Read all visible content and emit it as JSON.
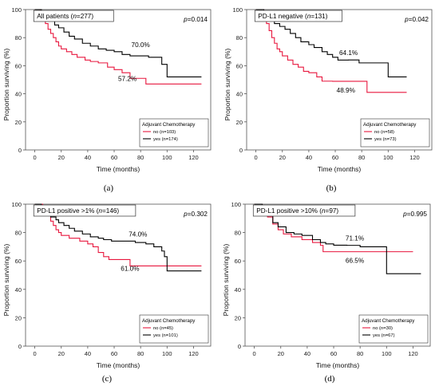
{
  "colors": {
    "no": "#e8173e",
    "yes": "#000000",
    "axis": "#555555"
  },
  "chart_data": [
    {
      "type": "line",
      "title": "All patients (n=277)",
      "title_parts": [
        "All patients (",
        "n",
        "=277)"
      ],
      "pvalue": "p=0.014",
      "panel_label": "(a)",
      "xlabel": "Time (months)",
      "ylabel": "Proportion surviving (%)",
      "xlim": [
        -7,
        133
      ],
      "ylim": [
        0,
        100
      ],
      "xticks": [
        0,
        20,
        40,
        60,
        80,
        100,
        120
      ],
      "yticks": [
        0,
        20,
        40,
        60,
        80,
        100
      ],
      "legend_title": "Adjuvant Chemotherapy",
      "annotations": [
        {
          "text": "70.0%",
          "x": 80,
          "y": 70.0
        },
        {
          "text": "57.2%",
          "x": 70,
          "y": 57.2
        }
      ],
      "series": [
        {
          "name": "no (n=103)",
          "color_key": "no",
          "x": [
            0,
            4,
            6,
            8,
            10,
            12,
            14,
            16,
            18,
            20,
            24,
            28,
            32,
            38,
            42,
            48,
            55,
            60,
            66,
            72,
            84,
            126
          ],
          "y": [
            100,
            97,
            94,
            90,
            86,
            83,
            80,
            77,
            74,
            72,
            70,
            68,
            66,
            64,
            63,
            62,
            59,
            57.2,
            55,
            51,
            47,
            47
          ]
        },
        {
          "name": "yes (n=174)",
          "color_key": "yes",
          "x": [
            0,
            5,
            8,
            10,
            12,
            15,
            18,
            22,
            26,
            30,
            36,
            42,
            48,
            54,
            60,
            66,
            72,
            86,
            96,
            100,
            126
          ],
          "y": [
            100,
            98,
            96,
            94,
            92,
            89,
            87,
            84,
            81,
            79,
            76,
            74,
            72,
            71,
            70,
            68,
            67,
            66,
            61,
            52,
            52
          ]
        }
      ]
    },
    {
      "type": "line",
      "title": "PD-L1 negative (n=131)",
      "title_parts": [
        "PD-L1 negative (",
        "n",
        "=131)"
      ],
      "pvalue": "p=0.042",
      "panel_label": "(b)",
      "xlabel": "Time (months)",
      "ylabel": "Proportion surviving (%)",
      "xlim": [
        -7,
        133
      ],
      "ylim": [
        0,
        100
      ],
      "xticks": [
        0,
        20,
        40,
        60,
        80,
        100,
        120
      ],
      "yticks": [
        0,
        20,
        40,
        60,
        80,
        100
      ],
      "legend_title": "Adjuvant Chemotherapy",
      "annotations": [
        {
          "text": "64.1%",
          "x": 70,
          "y": 64.1
        },
        {
          "text": "48.9%",
          "x": 68,
          "y": 48.9
        }
      ],
      "series": [
        {
          "name": "no (n=58)",
          "color_key": "no",
          "x": [
            0,
            6,
            8,
            10,
            12,
            14,
            16,
            18,
            20,
            24,
            28,
            32,
            36,
            40,
            46,
            50,
            58,
            72,
            84,
            114
          ],
          "y": [
            100,
            95,
            90,
            85,
            80,
            76,
            72,
            70,
            67,
            64,
            61,
            59,
            56,
            55,
            52,
            49,
            48.9,
            48.9,
            41,
            41
          ]
        },
        {
          "name": "yes (n=73)",
          "color_key": "yes",
          "x": [
            0,
            6,
            10,
            14,
            18,
            22,
            26,
            30,
            34,
            40,
            44,
            50,
            54,
            58,
            62,
            70,
            78,
            84,
            100,
            114
          ],
          "y": [
            100,
            96,
            92,
            90,
            88,
            86,
            83,
            80,
            77,
            75,
            73,
            70,
            68,
            66,
            64,
            64.1,
            62,
            62,
            52,
            52
          ]
        }
      ]
    },
    {
      "type": "line",
      "title": "PD-L1 positive >1% (n=146)",
      "title_parts": [
        "PD-L1 positive >1% (",
        "n",
        "=146)"
      ],
      "pvalue": "p=0.302",
      "panel_label": "(c)",
      "xlabel": "Time (months)",
      "ylabel": "Proportion surviving (%)",
      "xlim": [
        -7,
        133
      ],
      "ylim": [
        0,
        100
      ],
      "xticks": [
        0,
        20,
        40,
        60,
        80,
        100,
        120
      ],
      "yticks": [
        0,
        20,
        40,
        60,
        80,
        100
      ],
      "legend_title": "Adjuvant Chemotherapy",
      "annotations": [
        {
          "text": "74.0%",
          "x": 78,
          "y": 74.0
        },
        {
          "text": "61.0%",
          "x": 72,
          "y": 61.0
        }
      ],
      "series": [
        {
          "name": "no (n=45)",
          "color_key": "no",
          "x": [
            0,
            6,
            10,
            12,
            14,
            16,
            18,
            20,
            26,
            34,
            40,
            44,
            48,
            52,
            56,
            60,
            72,
            100,
            126
          ],
          "y": [
            100,
            97,
            93,
            88,
            85,
            82,
            80,
            78,
            76,
            74,
            72,
            70,
            66,
            63,
            61,
            61,
            56.5,
            56.5,
            56.5
          ]
        },
        {
          "name": "yes (n=101)",
          "color_key": "yes",
          "x": [
            0,
            5,
            8,
            12,
            16,
            18,
            22,
            26,
            30,
            36,
            42,
            48,
            52,
            58,
            64,
            70,
            76,
            84,
            90,
            96,
            98,
            100,
            126
          ],
          "y": [
            100,
            98,
            95,
            91,
            89,
            87,
            85,
            83,
            81,
            79,
            77,
            76,
            75,
            74,
            74,
            74,
            73,
            72,
            70,
            67,
            63,
            53,
            53
          ]
        }
      ]
    },
    {
      "type": "line",
      "title": "PD-L1 positive >10% (n=97)",
      "title_parts": [
        "PD-L1 positive >10% (",
        "n",
        "=97)"
      ],
      "pvalue": "p=0.995",
      "panel_label": "(d)",
      "xlabel": "Time (months)",
      "ylabel": "Proportion surviving (%)",
      "xlim": [
        -7,
        133
      ],
      "ylim": [
        0,
        100
      ],
      "xticks": [
        0,
        20,
        40,
        60,
        80,
        100,
        120
      ],
      "yticks": [
        0,
        20,
        40,
        60,
        80,
        100
      ],
      "legend_title": "Adjuvant Chemotherapy",
      "annotations": [
        {
          "text": "71.1%",
          "x": 76,
          "y": 71.1
        },
        {
          "text": "66.5%",
          "x": 76,
          "y": 66.5
        }
      ],
      "series": [
        {
          "name": "no (n=30)",
          "color_key": "no",
          "x": [
            0,
            6,
            10,
            14,
            18,
            22,
            28,
            36,
            44,
            50,
            52,
            120
          ],
          "y": [
            100,
            96,
            91,
            86,
            82,
            79,
            77,
            75,
            73,
            71,
            66.5,
            66.5
          ]
        },
        {
          "name": "yes (n=67)",
          "color_key": "yes",
          "x": [
            0,
            6,
            10,
            14,
            18,
            24,
            30,
            36,
            44,
            50,
            54,
            60,
            70,
            80,
            90,
            98,
            100,
            126
          ],
          "y": [
            100,
            97,
            92,
            87,
            84,
            80,
            79,
            78,
            75,
            73,
            72,
            71.1,
            71,
            70,
            70,
            70,
            51,
            51
          ]
        }
      ]
    }
  ]
}
